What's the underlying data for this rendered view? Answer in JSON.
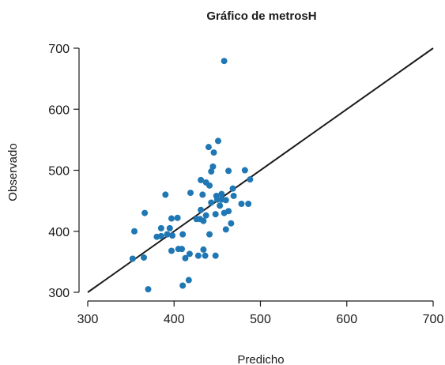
{
  "chart_data": {
    "type": "scatter",
    "title": "Gráfico de metrosH",
    "xlabel": "Predicho",
    "ylabel": "Observado",
    "xlim": [
      300,
      700
    ],
    "ylim": [
      300,
      700
    ],
    "xticks": [
      "300",
      "400",
      "500",
      "600",
      "700"
    ],
    "yticks": [
      "300",
      "400",
      "500",
      "600",
      "700"
    ],
    "grid": false,
    "reference_line": {
      "x": [
        300,
        700
      ],
      "y": [
        300,
        700
      ]
    },
    "colors": {
      "points": "#1f77b4",
      "line": "#1a1a1a",
      "axes": "#1a1a1a"
    },
    "points": [
      [
        458,
        679
      ],
      [
        451,
        548
      ],
      [
        440,
        538
      ],
      [
        446,
        529
      ],
      [
        445,
        506
      ],
      [
        443,
        498
      ],
      [
        431,
        484
      ],
      [
        437,
        480
      ],
      [
        463,
        499
      ],
      [
        482,
        500
      ],
      [
        488,
        485
      ],
      [
        441,
        475
      ],
      [
        449,
        458
      ],
      [
        455,
        461
      ],
      [
        468,
        470
      ],
      [
        469,
        458
      ],
      [
        419,
        463
      ],
      [
        433,
        460
      ],
      [
        390,
        460
      ],
      [
        443,
        447
      ],
      [
        450,
        452
      ],
      [
        455,
        452
      ],
      [
        460,
        451
      ],
      [
        478,
        445
      ],
      [
        486,
        445
      ],
      [
        453,
        442
      ],
      [
        463,
        433
      ],
      [
        458,
        430
      ],
      [
        448,
        428
      ],
      [
        437,
        426
      ],
      [
        431,
        435
      ],
      [
        434,
        417
      ],
      [
        426,
        420
      ],
      [
        430,
        420
      ],
      [
        366,
        430
      ],
      [
        397,
        421
      ],
      [
        404,
        422
      ],
      [
        466,
        413
      ],
      [
        460,
        403
      ],
      [
        395,
        405
      ],
      [
        385,
        405
      ],
      [
        380,
        391
      ],
      [
        385,
        392
      ],
      [
        392,
        395
      ],
      [
        398,
        393
      ],
      [
        410,
        395
      ],
      [
        441,
        395
      ],
      [
        354,
        400
      ],
      [
        397,
        368
      ],
      [
        405,
        371
      ],
      [
        409,
        371
      ],
      [
        418,
        363
      ],
      [
        428,
        360
      ],
      [
        434,
        370
      ],
      [
        436,
        360
      ],
      [
        448,
        360
      ],
      [
        413,
        356
      ],
      [
        352,
        355
      ],
      [
        365,
        357
      ],
      [
        417,
        320
      ],
      [
        410,
        311
      ],
      [
        370,
        305
      ]
    ]
  }
}
